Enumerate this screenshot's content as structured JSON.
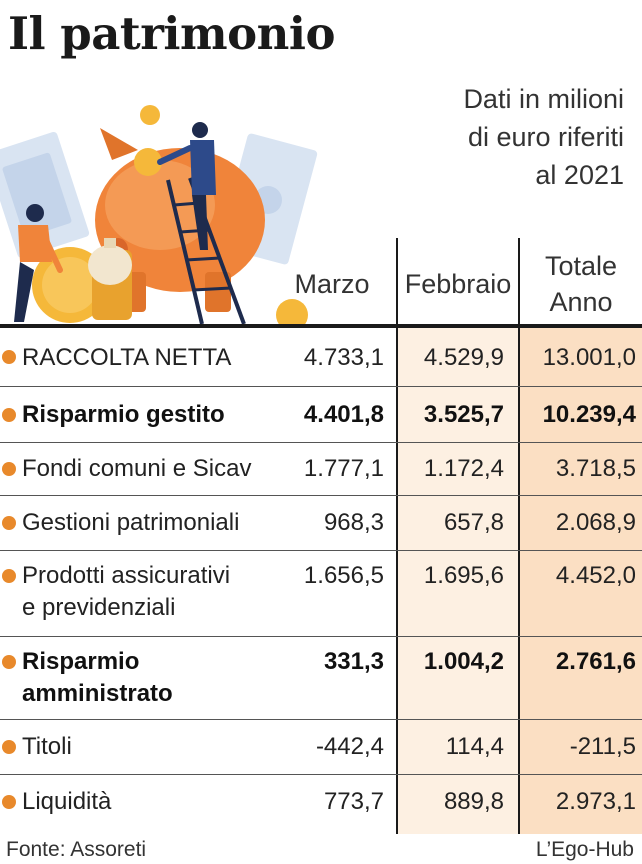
{
  "title": "Il patrimonio",
  "subtitle": [
    "Dati in milioni",
    "di euro riferiti",
    "al 2021"
  ],
  "columns": [
    "Marzo",
    "Febbraio",
    "Totale",
    "Anno"
  ],
  "source": "Fonte: Assoreti",
  "credit": "L’Ego-Hub",
  "colors": {
    "accent": "#e8892b",
    "col2_bg": "#fdf0e2",
    "col3_bg": "#fbdfc3",
    "rule": "#1a1a1a"
  },
  "illustration_icons": [
    "piggy-bank-icon",
    "coin-icon",
    "banknote-icon",
    "money-bag-icon",
    "person-icon",
    "ladder-icon"
  ],
  "chart_data": {
    "type": "table",
    "title": "Il patrimonio",
    "subtitle": "Dati in milioni di euro riferiti al 2021",
    "columns": [
      "Marzo",
      "Febbraio",
      "Totale Anno"
    ],
    "rows": [
      {
        "label": "RACCOLTA NETTA",
        "bold": false,
        "values": [
          "4.733,1",
          "4.529,9",
          "13.001,0"
        ]
      },
      {
        "label": "Risparmio gestito",
        "bold": true,
        "values": [
          "4.401,8",
          "3.525,7",
          "10.239,4"
        ]
      },
      {
        "label": "Fondi comuni e Sicav",
        "bold": false,
        "values": [
          "1.777,1",
          "1.172,4",
          "3.718,5"
        ]
      },
      {
        "label": "Gestioni patrimoniali",
        "bold": false,
        "values": [
          "968,3",
          "657,8",
          "2.068,9"
        ]
      },
      {
        "label_lines": [
          "Prodotti assicurativi",
          "e previdenziali"
        ],
        "bold": false,
        "values": [
          "1.656,5",
          "1.695,6",
          "4.452,0"
        ]
      },
      {
        "label_lines": [
          "Risparmio",
          "amministrato"
        ],
        "bold": true,
        "values": [
          "331,3",
          "1.004,2",
          "2.761,6"
        ]
      },
      {
        "label": "Titoli",
        "bold": false,
        "values": [
          "-442,4",
          "114,4",
          "-211,5"
        ]
      },
      {
        "label": "Liquidità",
        "bold": false,
        "values": [
          "773,7",
          "889,8",
          "2.973,1"
        ]
      }
    ]
  }
}
